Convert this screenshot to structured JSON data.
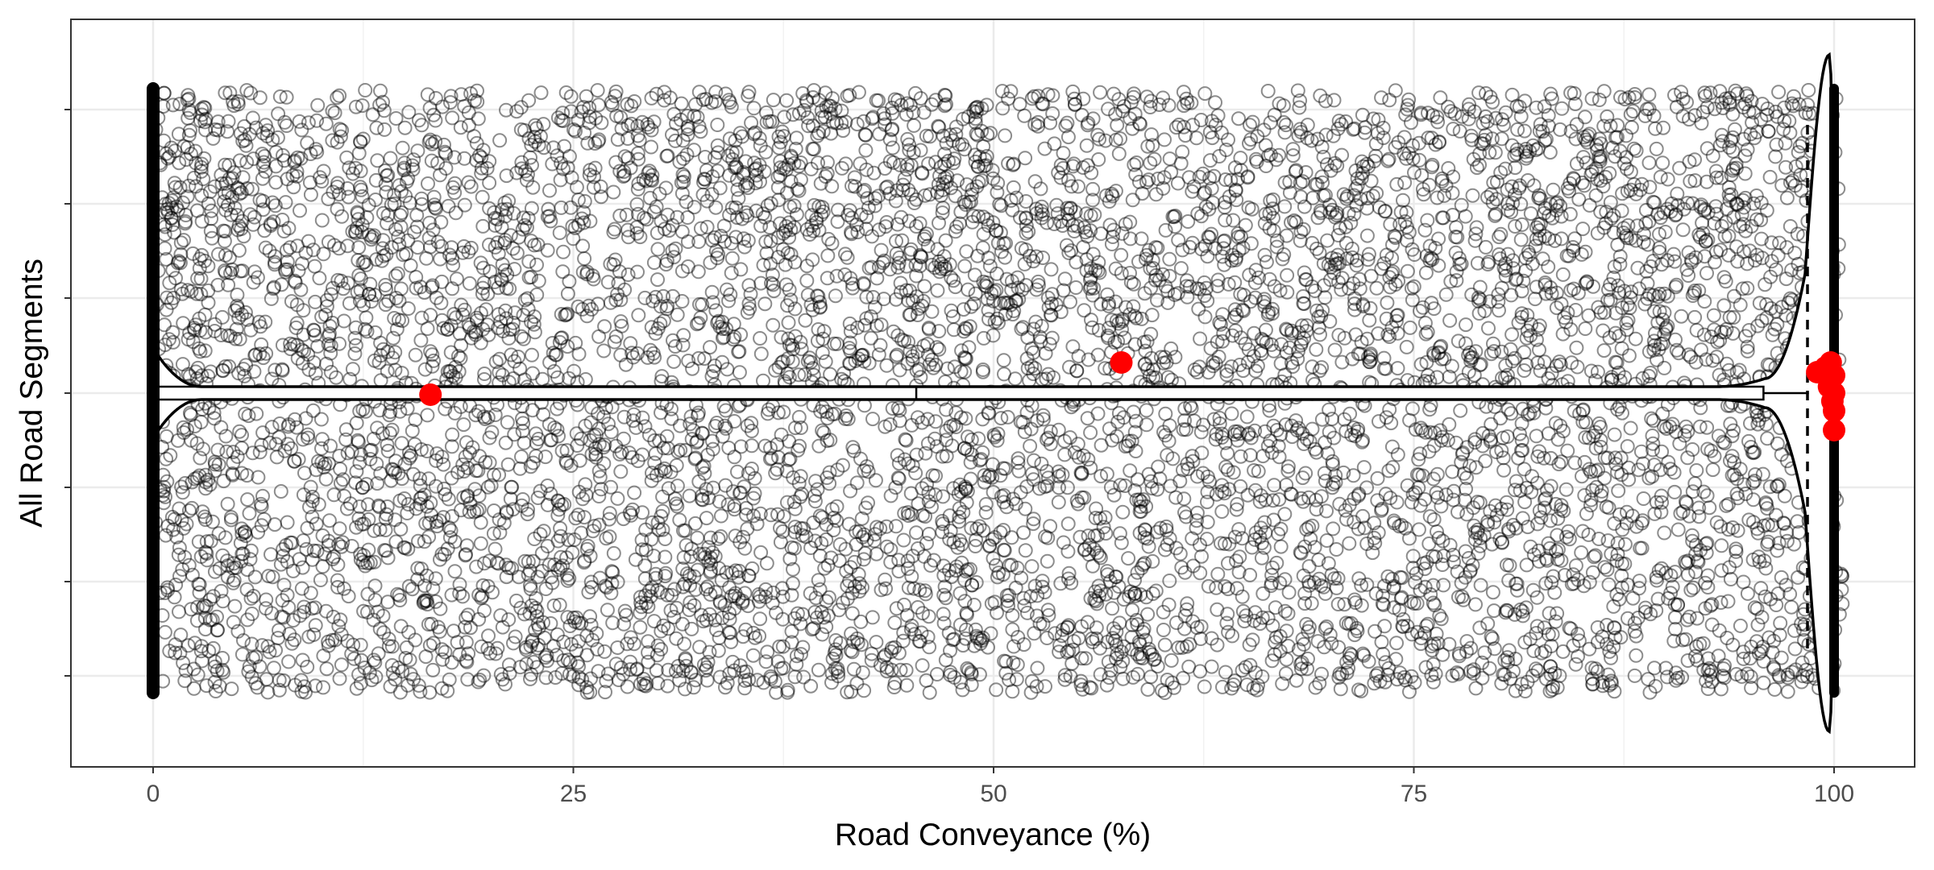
{
  "chart_data": {
    "type": "scatter",
    "title": "",
    "xlabel": "Road Conveyance (%)",
    "ylabel": "All Road Segments",
    "xlim": [
      -4.6,
      105.3
    ],
    "xticks": [
      0,
      25,
      50,
      75,
      100
    ],
    "xtick_labels": [
      "0",
      "25",
      "50",
      "75",
      "100"
    ],
    "grid": true,
    "legend": "none",
    "layers": [
      "jittered points (open circles)",
      "violin",
      "boxplot",
      "highlighted points"
    ],
    "jitter_points": {
      "x_range": [
        0,
        100
      ],
      "marker": "open-circle",
      "color": "#000000",
      "opacity": 0.45
    },
    "violin": {
      "x_range": [
        0,
        100
      ],
      "fill": "#ffffff",
      "stroke": "#000000"
    },
    "boxplot": {
      "q1": 0,
      "median": 45.4,
      "q3": 95.8,
      "whisker_low": 0,
      "whisker_high": 98.5
    },
    "highlight_points": {
      "color": "#ff0000",
      "x": [
        16.5,
        57.6,
        99.0,
        99.5,
        99.8,
        100.0,
        99.7,
        100.0,
        99.9,
        100.0,
        100.0
      ]
    }
  }
}
